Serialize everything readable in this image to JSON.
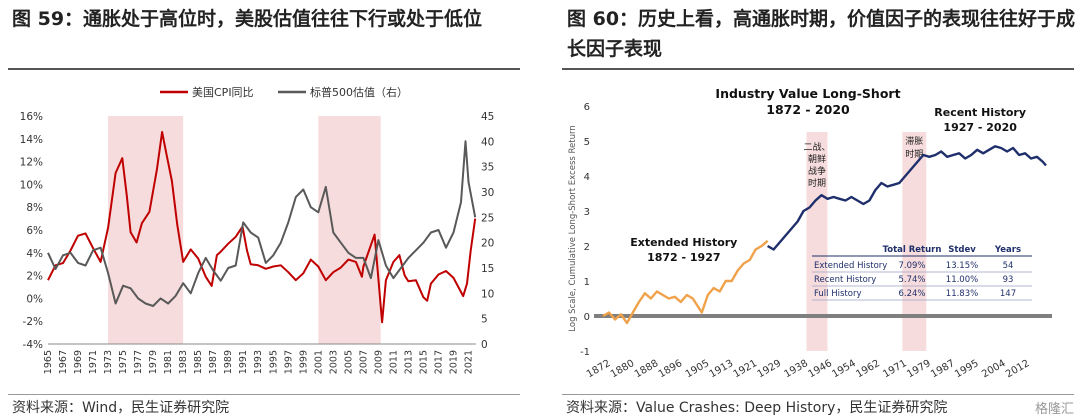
{
  "left_panel": {
    "title": "图 59：通胀处于高位时，美股估值往往下行或处于低位",
    "source": "资料来源：Wind，民生证券研究院"
  },
  "right_panel": {
    "title": "图 60：历史上看，高通胀时期，价值因子的表现往往好于成长因子表现",
    "source": "资料来源：Value Crashes: Deep History，民生证券研究院"
  },
  "watermark": "格隆汇",
  "chart_data": [
    {
      "type": "line",
      "legend_position": "top",
      "y_left": {
        "min": -4,
        "max": 16,
        "ticks": [
          "-4%",
          "-2%",
          "0%",
          "2%",
          "4%",
          "6%",
          "8%",
          "10%",
          "12%",
          "14%",
          "16%"
        ]
      },
      "y_right": {
        "min": 0,
        "max": 45,
        "ticks": [
          "0",
          "5",
          "10",
          "15",
          "20",
          "25",
          "30",
          "35",
          "40",
          "45"
        ]
      },
      "x_ticks": [
        "1965",
        "1967",
        "1969",
        "1971",
        "1973",
        "1975",
        "1977",
        "1979",
        "1981",
        "1983",
        "1985",
        "1987",
        "1989",
        "1991",
        "1993",
        "1995",
        "1997",
        "1999",
        "2001",
        "2003",
        "2005",
        "2007",
        "2009",
        "2011",
        "2013",
        "2015",
        "2017",
        "2019",
        "2021"
      ],
      "shaded_ranges": [
        [
          1973,
          1983
        ],
        [
          2001,
          2009.3
        ]
      ],
      "series": [
        {
          "name": "美国CPI同比",
          "axis": "left",
          "color": "#c00000",
          "points": [
            [
              1965,
              1.6
            ],
            [
              1966,
              2.9
            ],
            [
              1967,
              3.1
            ],
            [
              1968,
              4.2
            ],
            [
              1969,
              5.5
            ],
            [
              1970,
              5.7
            ],
            [
              1971,
              4.4
            ],
            [
              1972,
              3.2
            ],
            [
              1973,
              6.2
            ],
            [
              1974,
              11.0
            ],
            [
              1974.9,
              12.3
            ],
            [
              1975.5,
              9.0
            ],
            [
              1976,
              5.8
            ],
            [
              1976.8,
              4.9
            ],
            [
              1977.5,
              6.6
            ],
            [
              1978.5,
              7.6
            ],
            [
              1979.5,
              11.3
            ],
            [
              1980.2,
              14.6
            ],
            [
              1980.8,
              12.6
            ],
            [
              1981.5,
              10.3
            ],
            [
              1982.2,
              6.5
            ],
            [
              1983,
              3.2
            ],
            [
              1984,
              4.3
            ],
            [
              1985,
              3.5
            ],
            [
              1986,
              1.9
            ],
            [
              1986.8,
              1.1
            ],
            [
              1987.5,
              3.8
            ],
            [
              1988,
              4.1
            ],
            [
              1989,
              4.8
            ],
            [
              1990,
              5.4
            ],
            [
              1990.9,
              6.3
            ],
            [
              1991.5,
              4.2
            ],
            [
              1992,
              3.0
            ],
            [
              1993,
              2.9
            ],
            [
              1994,
              2.6
            ],
            [
              1995,
              2.8
            ],
            [
              1996,
              2.9
            ],
            [
              1997,
              2.3
            ],
            [
              1998,
              1.6
            ],
            [
              1999,
              2.2
            ],
            [
              2000,
              3.4
            ],
            [
              2001,
              2.8
            ],
            [
              2002,
              1.6
            ],
            [
              2003,
              2.3
            ],
            [
              2004,
              2.7
            ],
            [
              2005,
              3.4
            ],
            [
              2006,
              3.2
            ],
            [
              2006.8,
              1.9
            ],
            [
              2007,
              2.8
            ],
            [
              2008.5,
              5.6
            ],
            [
              2009.5,
              -2.1
            ],
            [
              2010,
              1.6
            ],
            [
              2011,
              3.2
            ],
            [
              2011.8,
              3.8
            ],
            [
              2012.5,
              2.0
            ],
            [
              2013,
              1.5
            ],
            [
              2014,
              1.6
            ],
            [
              2015,
              0.1
            ],
            [
              2015.5,
              -0.2
            ],
            [
              2016,
              1.3
            ],
            [
              2017,
              2.1
            ],
            [
              2018,
              2.4
            ],
            [
              2019,
              1.8
            ],
            [
              2020.3,
              0.2
            ],
            [
              2020.8,
              1.3
            ],
            [
              2021.3,
              4.2
            ],
            [
              2021.9,
              7.0
            ]
          ]
        },
        {
          "name": "标普500估值（右）",
          "axis": "right",
          "color": "#595959",
          "points": [
            [
              1965,
              18.0
            ],
            [
              1966,
              14.8
            ],
            [
              1967,
              17.5
            ],
            [
              1968,
              18.0
            ],
            [
              1969,
              16.0
            ],
            [
              1970,
              15.5
            ],
            [
              1971,
              18.5
            ],
            [
              1972,
              19.0
            ],
            [
              1973,
              14.0
            ],
            [
              1974,
              8.0
            ],
            [
              1975,
              11.5
            ],
            [
              1976,
              11.0
            ],
            [
              1977,
              9.0
            ],
            [
              1978,
              8.0
            ],
            [
              1979,
              7.5
            ],
            [
              1980,
              9.0
            ],
            [
              1981,
              8.0
            ],
            [
              1982,
              9.5
            ],
            [
              1983,
              12.0
            ],
            [
              1984,
              10.0
            ],
            [
              1985,
              14.0
            ],
            [
              1986,
              17.0
            ],
            [
              1987,
              14.5
            ],
            [
              1988,
              12.5
            ],
            [
              1989,
              15.0
            ],
            [
              1990,
              15.5
            ],
            [
              1991,
              24.0
            ],
            [
              1992,
              22.0
            ],
            [
              1993,
              21.0
            ],
            [
              1994,
              16.0
            ],
            [
              1995,
              17.5
            ],
            [
              1996,
              20.0
            ],
            [
              1997,
              24.0
            ],
            [
              1998,
              29.0
            ],
            [
              1999,
              30.5
            ],
            [
              2000,
              27.0
            ],
            [
              2001,
              26.0
            ],
            [
              2002,
              31.0
            ],
            [
              2003,
              22.0
            ],
            [
              2004,
              20.0
            ],
            [
              2005,
              18.0
            ],
            [
              2006,
              17.0
            ],
            [
              2007,
              17.0
            ],
            [
              2008,
              13.0
            ],
            [
              2009,
              20.5
            ],
            [
              2010,
              15.5
            ],
            [
              2011,
              13.0
            ],
            [
              2012,
              15.0
            ],
            [
              2013,
              17.0
            ],
            [
              2014,
              18.5
            ],
            [
              2015,
              20.0
            ],
            [
              2016,
              22.0
            ],
            [
              2017,
              22.5
            ],
            [
              2018,
              19.0
            ],
            [
              2019,
              22.0
            ],
            [
              2020,
              28.0
            ],
            [
              2020.6,
              40.0
            ],
            [
              2021,
              32.0
            ],
            [
              2021.9,
              25.0
            ]
          ]
        }
      ]
    },
    {
      "type": "line",
      "title": "Industry Value Long-Short\n1872 - 2020",
      "ylabel": "Log Scale, Cumulative Long-Short Excess Return",
      "ylim": [
        -1,
        6
      ],
      "y_ticks": [
        "-1",
        "0",
        "1",
        "2",
        "3",
        "4",
        "5",
        "6"
      ],
      "x_ticks": [
        "1872",
        "1880",
        "1888",
        "1896",
        "1905",
        "1913",
        "1921",
        "1929",
        "1938",
        "1946",
        "1954",
        "1962",
        "1971",
        "1979",
        "1987",
        "1995",
        "2004",
        "2012"
      ],
      "shaded_ranges": [
        [
          1940,
          1947
        ],
        [
          1972,
          1980
        ]
      ],
      "shaded_labels": [
        "二战、朝鲜战争时期",
        "滞胀时期"
      ],
      "series": [
        {
          "name": "Extended History",
          "color": "#f0a24a",
          "points": [
            [
              1872,
              0.0
            ],
            [
              1874,
              0.1
            ],
            [
              1876,
              -0.1
            ],
            [
              1878,
              0.05
            ],
            [
              1880,
              -0.2
            ],
            [
              1882,
              0.1
            ],
            [
              1884,
              0.4
            ],
            [
              1886,
              0.65
            ],
            [
              1888,
              0.5
            ],
            [
              1890,
              0.7
            ],
            [
              1892,
              0.6
            ],
            [
              1894,
              0.5
            ],
            [
              1896,
              0.55
            ],
            [
              1898,
              0.4
            ],
            [
              1900,
              0.6
            ],
            [
              1902,
              0.5
            ],
            [
              1905,
              0.1
            ],
            [
              1907,
              0.6
            ],
            [
              1909,
              0.8
            ],
            [
              1911,
              0.7
            ],
            [
              1913,
              1.0
            ],
            [
              1915,
              1.0
            ],
            [
              1917,
              1.3
            ],
            [
              1919,
              1.5
            ],
            [
              1921,
              1.6
            ],
            [
              1923,
              1.9
            ],
            [
              1925,
              2.0
            ],
            [
              1927,
              2.15
            ]
          ]
        },
        {
          "name": "Recent History",
          "color": "#1f2f6b",
          "points": [
            [
              1927,
              2.0
            ],
            [
              1929,
              1.9
            ],
            [
              1931,
              2.1
            ],
            [
              1933,
              2.3
            ],
            [
              1935,
              2.5
            ],
            [
              1937,
              2.7
            ],
            [
              1939,
              3.0
            ],
            [
              1941,
              3.1
            ],
            [
              1943,
              3.3
            ],
            [
              1945,
              3.45
            ],
            [
              1947,
              3.35
            ],
            [
              1949,
              3.4
            ],
            [
              1951,
              3.35
            ],
            [
              1953,
              3.3
            ],
            [
              1955,
              3.4
            ],
            [
              1957,
              3.3
            ],
            [
              1959,
              3.2
            ],
            [
              1961,
              3.3
            ],
            [
              1963,
              3.6
            ],
            [
              1965,
              3.8
            ],
            [
              1967,
              3.7
            ],
            [
              1969,
              3.75
            ],
            [
              1971,
              3.8
            ],
            [
              1973,
              4.0
            ],
            [
              1975,
              4.2
            ],
            [
              1977,
              4.4
            ],
            [
              1979,
              4.6
            ],
            [
              1981,
              4.55
            ],
            [
              1983,
              4.6
            ],
            [
              1985,
              4.7
            ],
            [
              1987,
              4.55
            ],
            [
              1989,
              4.6
            ],
            [
              1991,
              4.65
            ],
            [
              1993,
              4.5
            ],
            [
              1995,
              4.6
            ],
            [
              1997,
              4.75
            ],
            [
              1999,
              4.65
            ],
            [
              2001,
              4.75
            ],
            [
              2003,
              4.85
            ],
            [
              2005,
              4.8
            ],
            [
              2007,
              4.7
            ],
            [
              2009,
              4.8
            ],
            [
              2011,
              4.6
            ],
            [
              2013,
              4.65
            ],
            [
              2015,
              4.5
            ],
            [
              2017,
              4.55
            ],
            [
              2019,
              4.4
            ],
            [
              2020,
              4.3
            ]
          ]
        }
      ],
      "annotations": [
        {
          "text": "Extended History\n1872 - 1927"
        },
        {
          "text": "Recent History\n1927 - 2020"
        }
      ],
      "stats_table": {
        "columns": [
          "",
          "Total Return",
          "Stdev",
          "Years"
        ],
        "rows": [
          [
            "Extended History",
            "7.09%",
            "13.15%",
            "54"
          ],
          [
            "Recent History",
            "5.74%",
            "11.00%",
            "93"
          ],
          [
            "Full History",
            "6.24%",
            "11.83%",
            "147"
          ]
        ]
      }
    }
  ]
}
